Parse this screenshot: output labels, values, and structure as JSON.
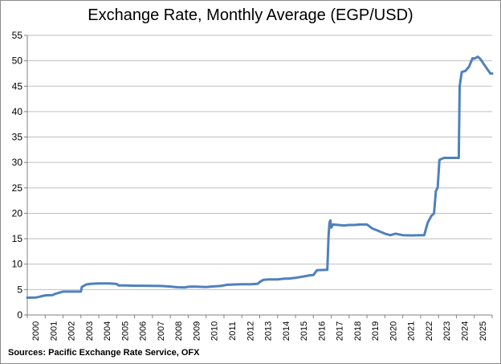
{
  "source_text": "Sources: Pacific Exchange Rate Service, OFX",
  "chart_data": {
    "type": "line",
    "title": "Exchange Rate, Monthly Average (EGP/USD)",
    "xlabel": "",
    "ylabel": "",
    "ylim": [
      0,
      55
    ],
    "xlim": [
      2000,
      2026
    ],
    "yticks": [
      0,
      5,
      10,
      15,
      20,
      25,
      30,
      35,
      40,
      45,
      50,
      55
    ],
    "xticks": [
      "2000",
      "2001",
      "2002",
      "2003",
      "2004",
      "2005",
      "2006",
      "2007",
      "2008",
      "2009",
      "2010",
      "2011",
      "2012",
      "2013",
      "2014",
      "2015",
      "2016",
      "2017",
      "2018",
      "2019",
      "2020",
      "2021",
      "2022",
      "2023",
      "2024",
      "2025"
    ],
    "grid": "horizontal",
    "legend": "none",
    "line_color": "#4f81bd",
    "series": [
      {
        "x": [
          2000.0,
          2000.5,
          2000.7,
          2000.8,
          2001.0,
          2001.4,
          2001.6,
          2001.9,
          2002.0,
          2002.2,
          2003.0,
          2003.05,
          2003.3,
          2003.6,
          2004.0,
          2004.3,
          2004.6,
          2005.0,
          2005.1,
          2005.5,
          2006.0,
          2006.5,
          2007.0,
          2007.5,
          2008.0,
          2008.4,
          2008.8,
          2009.0,
          2009.3,
          2010.0,
          2010.3,
          2010.8,
          2011.2,
          2011.6,
          2012.0,
          2012.5,
          2012.9,
          2013.0,
          2013.2,
          2013.5,
          2014.0,
          2014.4,
          2014.6,
          2015.0,
          2015.5,
          2015.8,
          2016.0,
          2016.2,
          2016.5,
          2016.78,
          2016.85,
          2016.9,
          2016.95,
          2017.0,
          2017.1,
          2017.4,
          2017.7,
          2018.0,
          2018.3,
          2018.6,
          2019.0,
          2019.3,
          2019.6,
          2020.0,
          2020.3,
          2020.6,
          2021.0,
          2021.5,
          2021.9,
          2022.0,
          2022.2,
          2022.4,
          2022.6,
          2022.75,
          2022.85,
          2022.95,
          2023.05,
          2023.3,
          2023.7,
          2024.0,
          2024.13,
          2024.18,
          2024.3,
          2024.5,
          2024.7,
          2024.9,
          2025.0,
          2025.2,
          2025.35,
          2025.5,
          2025.7,
          2025.9,
          2026.0
        ],
        "values": [
          3.4,
          3.45,
          3.6,
          3.7,
          3.85,
          3.9,
          4.2,
          4.5,
          4.6,
          4.6,
          4.6,
          5.5,
          6.0,
          6.15,
          6.2,
          6.2,
          6.2,
          6.1,
          5.8,
          5.8,
          5.75,
          5.75,
          5.72,
          5.7,
          5.6,
          5.45,
          5.4,
          5.55,
          5.6,
          5.5,
          5.6,
          5.7,
          5.95,
          6.0,
          6.05,
          6.05,
          6.15,
          6.5,
          6.9,
          7.0,
          7.0,
          7.15,
          7.15,
          7.3,
          7.6,
          7.8,
          7.85,
          8.8,
          8.85,
          8.9,
          15.5,
          18.2,
          18.6,
          17.2,
          17.8,
          17.7,
          17.6,
          17.7,
          17.7,
          17.8,
          17.8,
          17.0,
          16.6,
          16.0,
          15.7,
          16.0,
          15.7,
          15.65,
          15.7,
          15.7,
          15.7,
          18.2,
          19.5,
          20.0,
          24.4,
          25.0,
          30.5,
          30.9,
          30.9,
          30.9,
          30.9,
          45.0,
          47.8,
          48.0,
          48.8,
          50.5,
          50.4,
          50.8,
          50.3,
          49.5,
          48.5,
          47.5,
          47.5
        ]
      }
    ]
  }
}
